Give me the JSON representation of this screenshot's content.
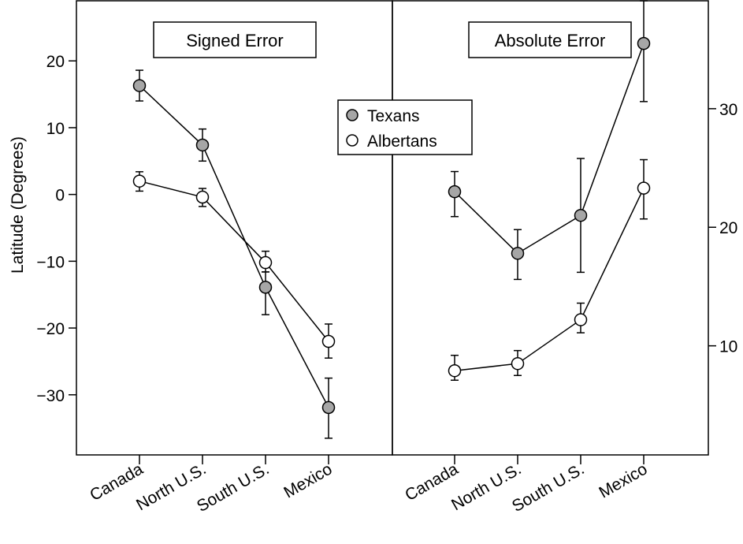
{
  "chart_data": [
    {
      "type": "line",
      "panel_label": "Signed Error",
      "ylabel": "Latitude (Degrees)",
      "y_axis_side": "left",
      "ylim": [
        -39,
        29
      ],
      "yticks": [
        -30,
        -20,
        -10,
        0,
        10,
        20
      ],
      "categories": [
        "Canada",
        "North U.S.",
        "South U.S.",
        "Mexico"
      ],
      "series": [
        {
          "name": "Texans",
          "marker": "filled-gray",
          "values": [
            16.3,
            7.4,
            -13.9,
            -31.9
          ],
          "err_low": [
            14.0,
            5.0,
            -18.0,
            -36.5
          ],
          "err_high": [
            18.6,
            9.8,
            -11.6,
            -27.5
          ]
        },
        {
          "name": "Albertans",
          "marker": "open-white",
          "values": [
            2.0,
            -0.4,
            -10.2,
            -22.0
          ],
          "err_low": [
            0.5,
            -1.8,
            -11.6,
            -24.5
          ],
          "err_high": [
            3.4,
            0.9,
            -8.5,
            -19.4
          ]
        }
      ]
    },
    {
      "type": "line",
      "panel_label": "Absolute Error",
      "ylabel": "",
      "y_axis_side": "right",
      "ylim": [
        0.8,
        39.1
      ],
      "yticks": [
        10,
        20,
        30
      ],
      "categories": [
        "Canada",
        "North U.S.",
        "South U.S.",
        "Mexico"
      ],
      "series": [
        {
          "name": "Texans",
          "marker": "filled-gray",
          "values": [
            23.0,
            17.8,
            21.0,
            35.5
          ],
          "err_low": [
            20.9,
            15.6,
            16.2,
            30.6
          ],
          "err_high": [
            24.7,
            19.8,
            25.8,
            39.1
          ]
        },
        {
          "name": "Albertans",
          "marker": "open-white",
          "values": [
            7.9,
            8.5,
            12.2,
            23.3
          ],
          "err_low": [
            7.1,
            7.5,
            11.1,
            20.7
          ],
          "err_high": [
            9.2,
            9.6,
            13.6,
            25.7
          ]
        }
      ]
    }
  ],
  "legend": {
    "items": [
      {
        "label": "Texans",
        "marker": "filled-gray"
      },
      {
        "label": "Albertans",
        "marker": "open-white"
      }
    ]
  },
  "colors": {
    "texans_fill": "#a6a6a6",
    "albertans_fill": "#ffffff",
    "stroke": "#000000"
  }
}
